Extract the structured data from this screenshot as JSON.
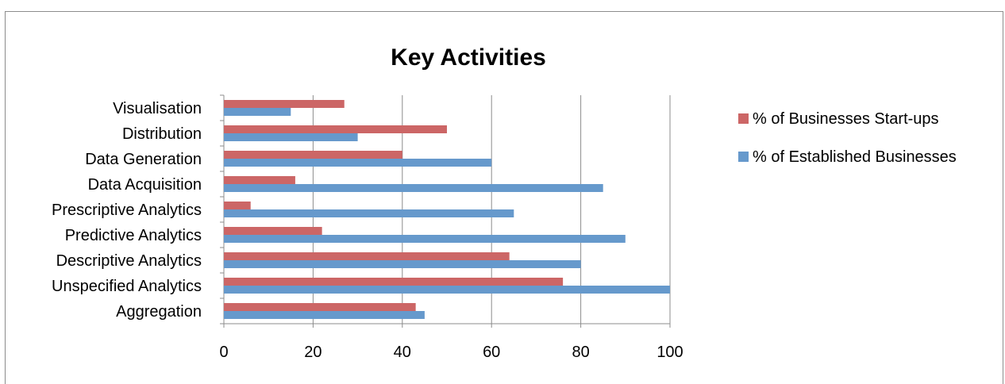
{
  "chart_data": {
    "type": "bar",
    "orientation": "horizontal",
    "title": "Key Activities",
    "categories": [
      "Aggregation",
      "Unspecified Analytics",
      "Descriptive Analytics",
      "Predictive Analytics",
      "Prescriptive Analytics",
      "Data Acquisition",
      "Data Generation",
      "Distribution",
      "Visualisation"
    ],
    "series": [
      {
        "name": "% of Established Businesses",
        "color": "#6699cc",
        "values": [
          45,
          100,
          80,
          90,
          65,
          85,
          60,
          30,
          15
        ]
      },
      {
        "name": "% of  Businesses Start-ups",
        "color": "#cc6666",
        "values": [
          43,
          76,
          64,
          22,
          6,
          16,
          40,
          50,
          27
        ]
      }
    ],
    "xlim": [
      0,
      100
    ],
    "xticks": [
      0,
      20,
      40,
      60,
      80,
      100
    ],
    "grid": true,
    "legend_position": "right"
  }
}
